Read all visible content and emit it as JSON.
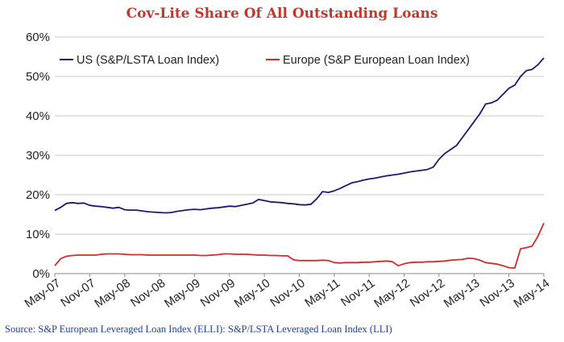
{
  "colors": {
    "us": "#1a1a6e",
    "europe": "#d42b2b",
    "title": "#c0392b",
    "source": "#1f3f9f"
  },
  "source_text": "Source: S&P  European Leveraged Loan Index (ELLI): S&P/LSTA Leveraged Loan Index (LLI)",
  "chart_data": {
    "type": "line",
    "title": "Cov-Lite Share Of All Outstanding Loans",
    "xlabel": "",
    "ylabel": "",
    "ylim": [
      0,
      60
    ],
    "yticks": [
      0,
      10,
      20,
      30,
      40,
      50,
      60
    ],
    "ytick_labels": [
      "0%",
      "10%",
      "20%",
      "30%",
      "40%",
      "50%",
      "60%"
    ],
    "xtick_labels": [
      "May-07",
      "Nov-07",
      "May-08",
      "Nov-08",
      "May-09",
      "Nov-09",
      "May-10",
      "Nov-10",
      "May-11",
      "Nov-11",
      "May-12",
      "Nov-12",
      "May-13",
      "Nov-13",
      "May-14"
    ],
    "xlim": [
      "2007-05",
      "2014-05"
    ],
    "grid": "horizontal",
    "legend": "top",
    "series": [
      {
        "name": "US (S&P/LSTA Loan Index)",
        "color": "#1a1a6e",
        "points": [
          [
            "2007-05",
            16.0
          ],
          [
            "2007-06",
            16.8
          ],
          [
            "2007-07",
            17.8
          ],
          [
            "2007-08",
            18.0
          ],
          [
            "2007-09",
            17.8
          ],
          [
            "2007-10",
            17.9
          ],
          [
            "2007-11",
            17.3
          ],
          [
            "2007-12",
            17.1
          ],
          [
            "2008-01",
            17.0
          ],
          [
            "2008-02",
            16.8
          ],
          [
            "2008-03",
            16.6
          ],
          [
            "2008-04",
            16.8
          ],
          [
            "2008-05",
            16.2
          ],
          [
            "2008-06",
            16.1
          ],
          [
            "2008-07",
            16.1
          ],
          [
            "2008-08",
            15.9
          ],
          [
            "2008-09",
            15.7
          ],
          [
            "2008-10",
            15.6
          ],
          [
            "2008-11",
            15.5
          ],
          [
            "2008-12",
            15.4
          ],
          [
            "2009-01",
            15.5
          ],
          [
            "2009-02",
            15.8
          ],
          [
            "2009-03",
            16.0
          ],
          [
            "2009-04",
            16.2
          ],
          [
            "2009-05",
            16.3
          ],
          [
            "2009-06",
            16.2
          ],
          [
            "2009-07",
            16.4
          ],
          [
            "2009-08",
            16.6
          ],
          [
            "2009-09",
            16.7
          ],
          [
            "2009-10",
            16.9
          ],
          [
            "2009-11",
            17.1
          ],
          [
            "2009-12",
            17.0
          ],
          [
            "2010-01",
            17.3
          ],
          [
            "2010-02",
            17.6
          ],
          [
            "2010-03",
            17.9
          ],
          [
            "2010-04",
            18.8
          ],
          [
            "2010-05",
            18.5
          ],
          [
            "2010-06",
            18.2
          ],
          [
            "2010-07",
            18.1
          ],
          [
            "2010-08",
            18.0
          ],
          [
            "2010-09",
            17.8
          ],
          [
            "2010-10",
            17.7
          ],
          [
            "2010-11",
            17.5
          ],
          [
            "2010-12",
            17.4
          ],
          [
            "2011-01",
            17.6
          ],
          [
            "2011-02",
            19.0
          ],
          [
            "2011-03",
            20.8
          ],
          [
            "2011-04",
            20.6
          ],
          [
            "2011-05",
            21.0
          ],
          [
            "2011-06",
            21.6
          ],
          [
            "2011-07",
            22.3
          ],
          [
            "2011-08",
            23.0
          ],
          [
            "2011-09",
            23.3
          ],
          [
            "2011-10",
            23.7
          ],
          [
            "2011-11",
            24.0
          ],
          [
            "2011-12",
            24.2
          ],
          [
            "2012-01",
            24.5
          ],
          [
            "2012-02",
            24.8
          ],
          [
            "2012-03",
            25.0
          ],
          [
            "2012-04",
            25.2
          ],
          [
            "2012-05",
            25.5
          ],
          [
            "2012-06",
            25.8
          ],
          [
            "2012-07",
            26.0
          ],
          [
            "2012-08",
            26.2
          ],
          [
            "2012-09",
            26.4
          ],
          [
            "2012-10",
            27.0
          ],
          [
            "2012-11",
            29.0
          ],
          [
            "2012-12",
            30.5
          ],
          [
            "2013-01",
            31.5
          ],
          [
            "2013-02",
            32.5
          ],
          [
            "2013-03",
            34.5
          ],
          [
            "2013-04",
            36.5
          ],
          [
            "2013-05",
            38.5
          ],
          [
            "2013-06",
            40.5
          ],
          [
            "2013-07",
            43.0
          ],
          [
            "2013-08",
            43.3
          ],
          [
            "2013-09",
            44.0
          ],
          [
            "2013-10",
            45.5
          ],
          [
            "2013-11",
            47.0
          ],
          [
            "2013-12",
            47.8
          ],
          [
            "2014-01",
            50.0
          ],
          [
            "2014-02",
            51.5
          ],
          [
            "2014-03",
            51.8
          ],
          [
            "2014-04",
            53.0
          ],
          [
            "2014-05",
            54.7
          ]
        ]
      },
      {
        "name": "Europe (S&P European Loan Index)",
        "color": "#d42b2b",
        "points": [
          [
            "2007-05",
            2.0
          ],
          [
            "2007-06",
            3.8
          ],
          [
            "2007-07",
            4.4
          ],
          [
            "2007-08",
            4.6
          ],
          [
            "2007-09",
            4.7
          ],
          [
            "2007-10",
            4.7
          ],
          [
            "2007-11",
            4.7
          ],
          [
            "2007-12",
            4.7
          ],
          [
            "2008-01",
            4.9
          ],
          [
            "2008-02",
            5.0
          ],
          [
            "2008-03",
            5.0
          ],
          [
            "2008-04",
            5.0
          ],
          [
            "2008-05",
            4.9
          ],
          [
            "2008-06",
            4.8
          ],
          [
            "2008-07",
            4.8
          ],
          [
            "2008-08",
            4.8
          ],
          [
            "2008-09",
            4.7
          ],
          [
            "2008-10",
            4.7
          ],
          [
            "2008-11",
            4.7
          ],
          [
            "2008-12",
            4.7
          ],
          [
            "2009-01",
            4.7
          ],
          [
            "2009-02",
            4.7
          ],
          [
            "2009-03",
            4.7
          ],
          [
            "2009-04",
            4.7
          ],
          [
            "2009-05",
            4.7
          ],
          [
            "2009-06",
            4.6
          ],
          [
            "2009-07",
            4.6
          ],
          [
            "2009-08",
            4.7
          ],
          [
            "2009-09",
            4.8
          ],
          [
            "2009-10",
            5.0
          ],
          [
            "2009-11",
            5.0
          ],
          [
            "2009-12",
            4.9
          ],
          [
            "2010-01",
            4.9
          ],
          [
            "2010-02",
            4.9
          ],
          [
            "2010-03",
            4.8
          ],
          [
            "2010-04",
            4.7
          ],
          [
            "2010-05",
            4.7
          ],
          [
            "2010-06",
            4.6
          ],
          [
            "2010-07",
            4.6
          ],
          [
            "2010-08",
            4.5
          ],
          [
            "2010-09",
            4.5
          ],
          [
            "2010-10",
            3.5
          ],
          [
            "2010-11",
            3.3
          ],
          [
            "2010-12",
            3.3
          ],
          [
            "2011-01",
            3.3
          ],
          [
            "2011-02",
            3.3
          ],
          [
            "2011-03",
            3.4
          ],
          [
            "2011-04",
            3.3
          ],
          [
            "2011-05",
            2.8
          ],
          [
            "2011-06",
            2.7
          ],
          [
            "2011-07",
            2.8
          ],
          [
            "2011-08",
            2.8
          ],
          [
            "2011-09",
            2.8
          ],
          [
            "2011-10",
            2.9
          ],
          [
            "2011-11",
            2.9
          ],
          [
            "2011-12",
            3.0
          ],
          [
            "2012-01",
            3.1
          ],
          [
            "2012-02",
            3.2
          ],
          [
            "2012-03",
            3.0
          ],
          [
            "2012-04",
            2.0
          ],
          [
            "2012-05",
            2.5
          ],
          [
            "2012-06",
            2.8
          ],
          [
            "2012-07",
            2.9
          ],
          [
            "2012-08",
            2.9
          ],
          [
            "2012-09",
            3.0
          ],
          [
            "2012-10",
            3.0
          ],
          [
            "2012-11",
            3.1
          ],
          [
            "2012-12",
            3.2
          ],
          [
            "2013-01",
            3.4
          ],
          [
            "2013-02",
            3.5
          ],
          [
            "2013-03",
            3.6
          ],
          [
            "2013-04",
            3.9
          ],
          [
            "2013-05",
            3.8
          ],
          [
            "2013-06",
            3.4
          ],
          [
            "2013-07",
            2.8
          ],
          [
            "2013-08",
            2.6
          ],
          [
            "2013-09",
            2.4
          ],
          [
            "2013-10",
            2.0
          ],
          [
            "2013-11",
            1.5
          ],
          [
            "2013-12",
            1.4
          ],
          [
            "2014-01",
            6.3
          ],
          [
            "2014-02",
            6.6
          ],
          [
            "2014-03",
            7.0
          ],
          [
            "2014-04",
            9.5
          ],
          [
            "2014-05",
            12.8
          ]
        ]
      }
    ]
  }
}
